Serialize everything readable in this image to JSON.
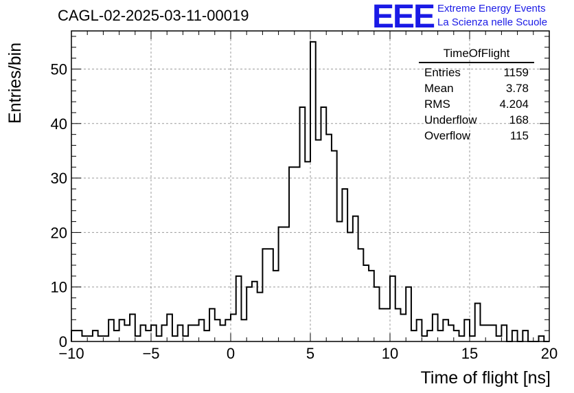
{
  "header": {
    "title": "CAGL-02-2025-03-11-00019",
    "logo_text": "EEE",
    "logo_line1": "Extreme Energy Events",
    "logo_line2": "La Scienza nelle Scuole",
    "logo_color": "#1a1ae6"
  },
  "stats_box": {
    "title": "TimeOfFlight",
    "rows": [
      {
        "label": "Entries",
        "value": "1159"
      },
      {
        "label": "Mean",
        "value": "3.78"
      },
      {
        "label": "RMS",
        "value": "4.204"
      },
      {
        "label": "Underflow",
        "value": "168"
      },
      {
        "label": "Overflow",
        "value": "115"
      }
    ]
  },
  "chart_data": {
    "type": "histogram",
    "title": "CAGL-02-2025-03-11-00019",
    "xlabel": "Time of flight [ns]",
    "ylabel": "Entries/bin",
    "xlim": [
      -10,
      20
    ],
    "ylim": [
      0,
      57
    ],
    "bin_width": 0.333,
    "xticks": [
      -10,
      -5,
      0,
      5,
      10,
      15,
      20
    ],
    "xtick_labels": [
      "−10",
      "−5",
      "0",
      "5",
      "10",
      "15",
      "20"
    ],
    "yticks": [
      0,
      10,
      20,
      30,
      40,
      50
    ],
    "ytick_labels": [
      "0",
      "10",
      "20",
      "30",
      "40",
      "50"
    ],
    "grid": true,
    "line_color": "#000000",
    "values": [
      2,
      2,
      1,
      1,
      2,
      1,
      1,
      4,
      2,
      4,
      3,
      5,
      1,
      3,
      2,
      3,
      1,
      3,
      5,
      1,
      3,
      1,
      3,
      3,
      4,
      2,
      6,
      4,
      3,
      4,
      5,
      12,
      4,
      10,
      11,
      9,
      17,
      17,
      13,
      21,
      21,
      32,
      32,
      43,
      33,
      55,
      37,
      43,
      38,
      35,
      22,
      28,
      20,
      23,
      17,
      14,
      13,
      10,
      6,
      6,
      12,
      6,
      5,
      10,
      2,
      4,
      1,
      2,
      5,
      2,
      4,
      3,
      2,
      1,
      4,
      1,
      7,
      3,
      3,
      3,
      1,
      3,
      0,
      2,
      0,
      2,
      0,
      0,
      1,
      0
    ]
  }
}
